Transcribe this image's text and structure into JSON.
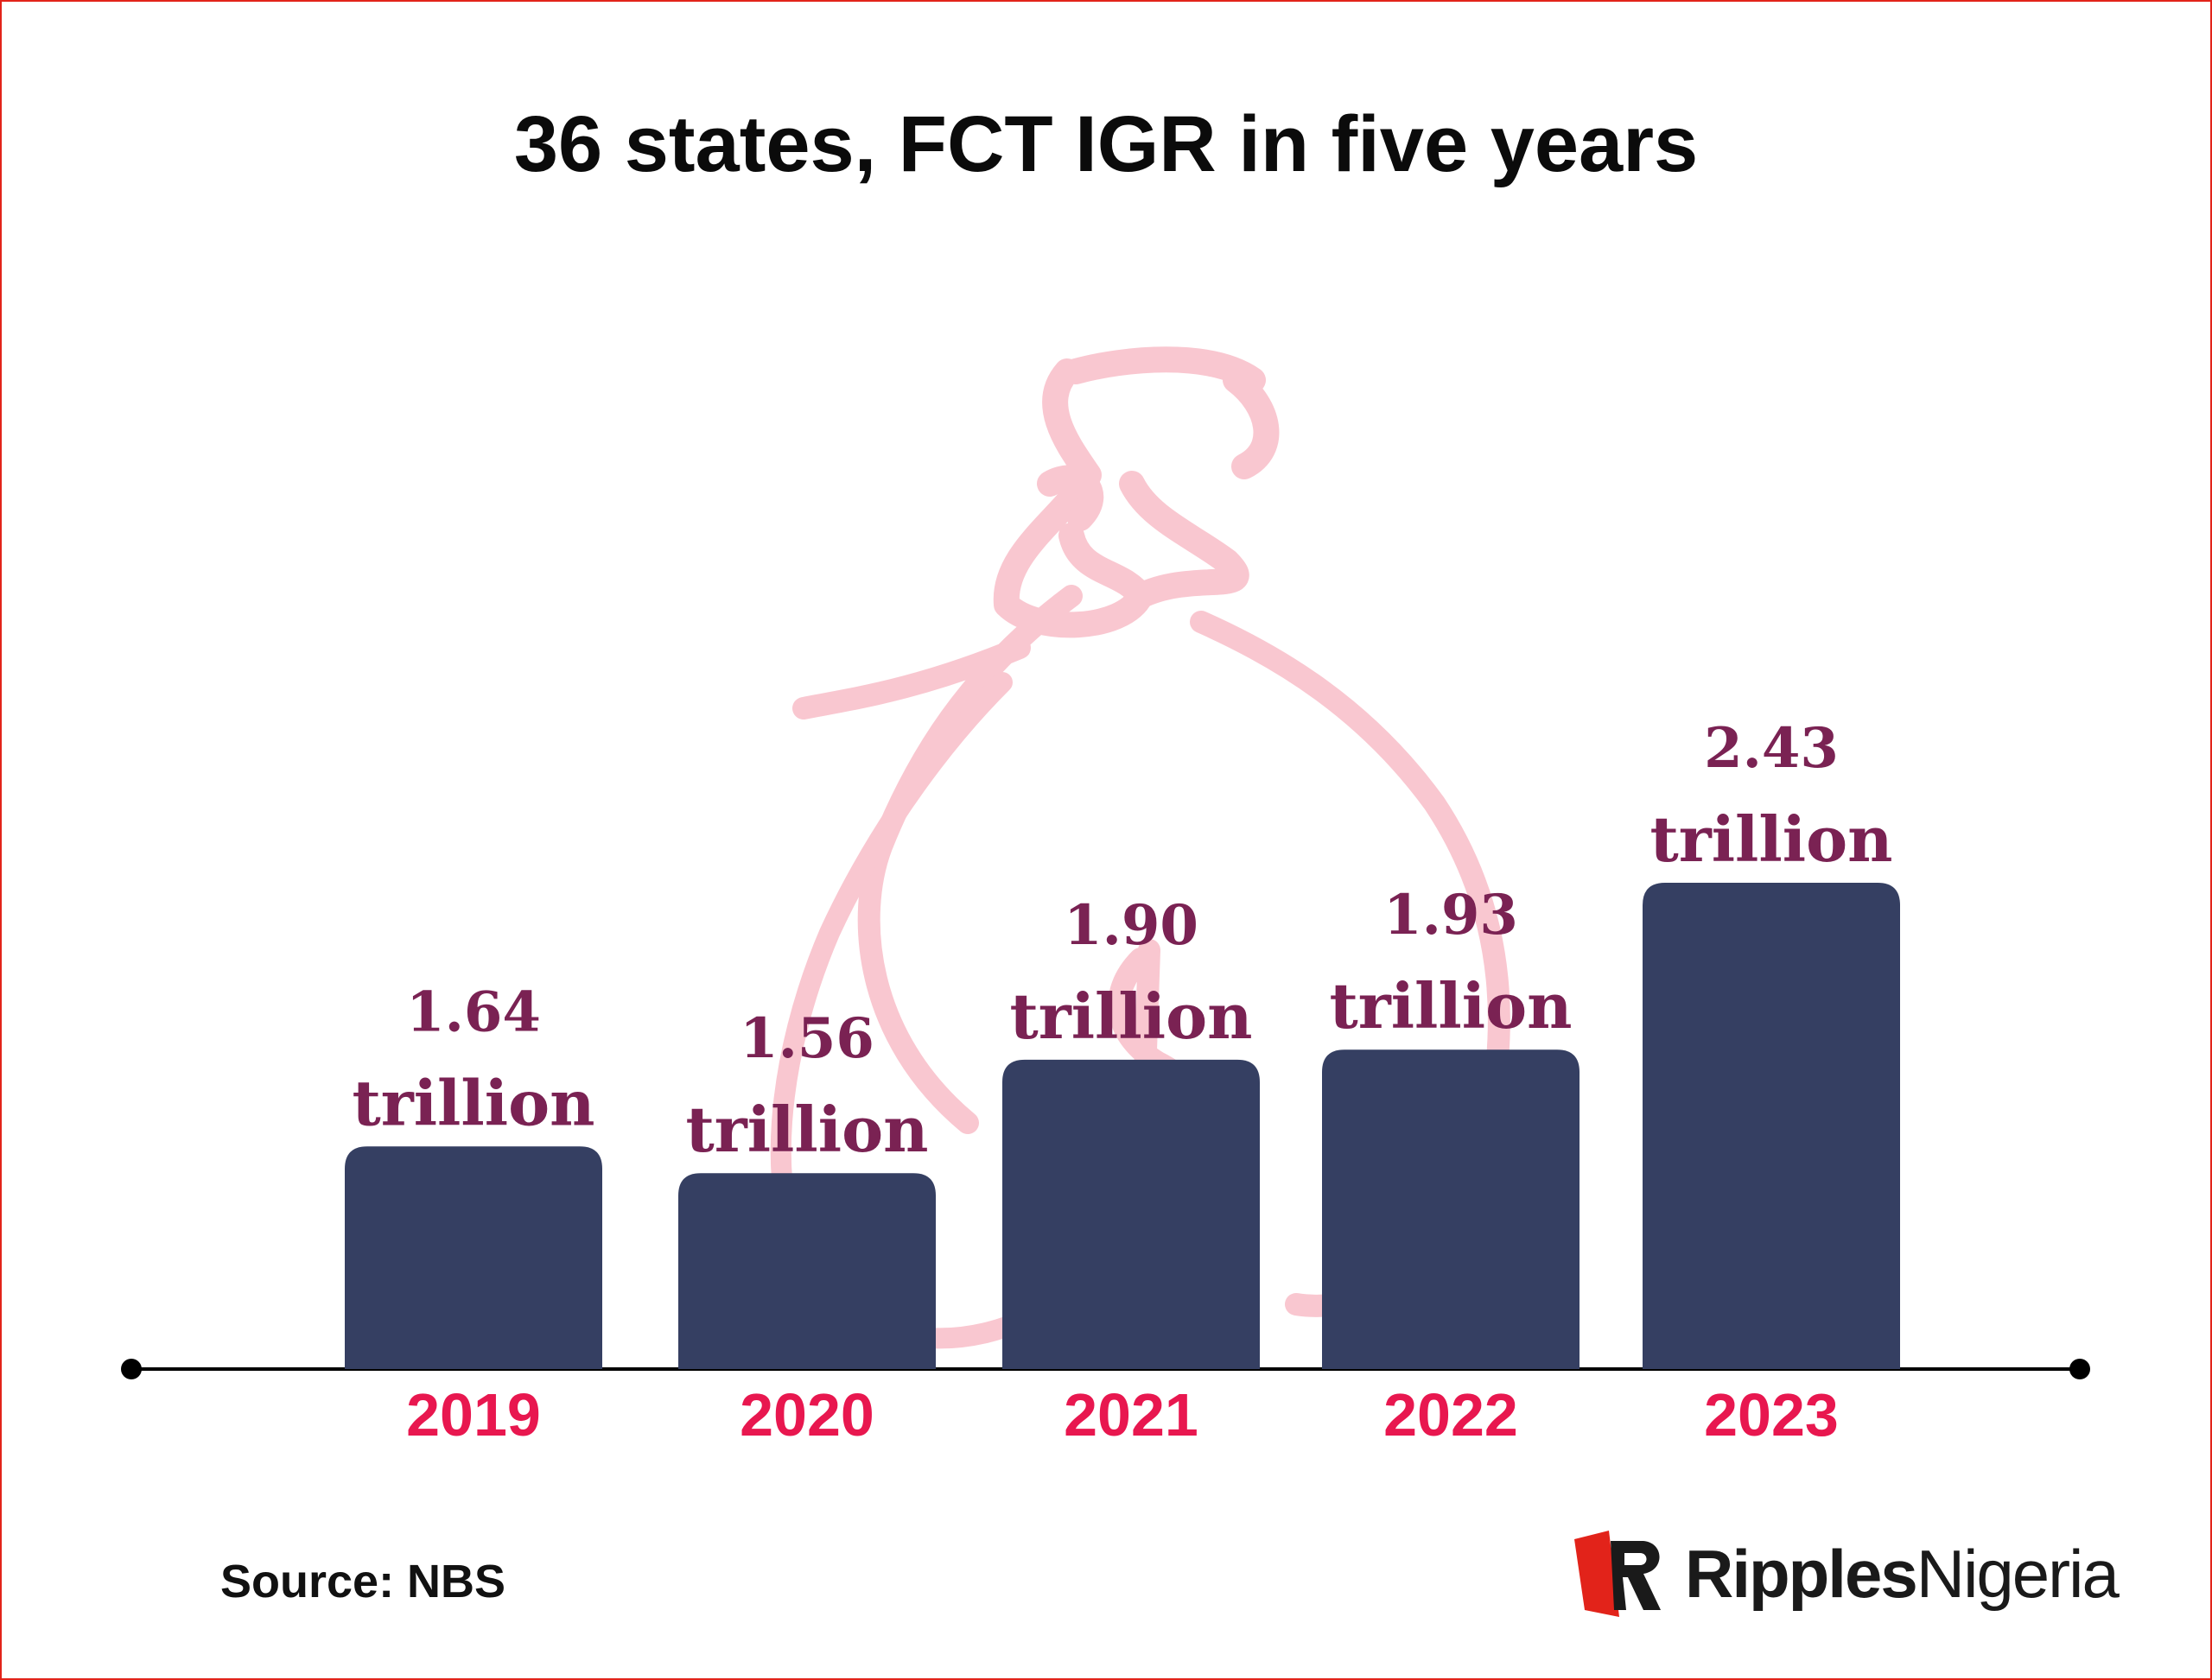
{
  "title": "36 states, FCT IGR in five years",
  "source": "Source: NBS",
  "brand": {
    "bold": "Ripples",
    "regular": "Nigeria",
    "color": "#e2231a"
  },
  "colors": {
    "bar": "#353f62",
    "value_label": "#7a2253",
    "category_label": "#e8174f",
    "watermark": "#f9c7d0",
    "frame": "#e2231a"
  },
  "watermark_icon": "money-bag-icon",
  "chart_data": {
    "type": "bar",
    "title": "36 states, FCT IGR in five years",
    "categories": [
      "2019",
      "2020",
      "2021",
      "2022",
      "2023"
    ],
    "values": [
      1.64,
      1.56,
      1.9,
      1.93,
      2.43
    ],
    "value_labels": [
      [
        "1.64",
        "trillion"
      ],
      [
        "1.56",
        "trillion"
      ],
      [
        "1.90",
        "trillion"
      ],
      [
        "1.93",
        "trillion"
      ],
      [
        "2.43",
        "trillion"
      ]
    ],
    "xlabel": "",
    "ylabel": "",
    "grid": false,
    "legend": "none"
  }
}
